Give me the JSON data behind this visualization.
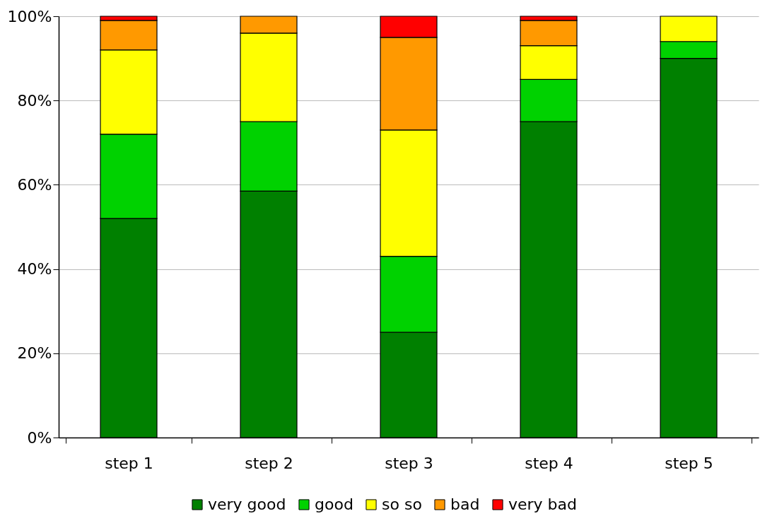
{
  "chart_data": {
    "type": "bar",
    "stacked": true,
    "categories": [
      "step 1",
      "step 2",
      "step 3",
      "step 4",
      "step 5"
    ],
    "series": [
      {
        "name": "very good",
        "color": "#008000",
        "values": [
          52,
          58.5,
          25,
          75,
          90
        ]
      },
      {
        "name": "good",
        "color": "#00d200",
        "values": [
          20,
          16.5,
          18,
          10,
          4
        ]
      },
      {
        "name": "so so",
        "color": "#ffff00",
        "values": [
          20,
          21,
          30,
          8,
          6
        ]
      },
      {
        "name": "bad",
        "color": "#ff9900",
        "values": [
          7,
          4,
          22,
          6,
          null
        ]
      },
      {
        "name": "very bad",
        "color": "#ff0000",
        "values": [
          1,
          null,
          5,
          1,
          null
        ]
      }
    ],
    "ylim": [
      0,
      100
    ],
    "yticks": [
      {
        "value": 0,
        "label": "0%"
      },
      {
        "value": 20,
        "label": "20%"
      },
      {
        "value": 40,
        "label": "40%"
      },
      {
        "value": 60,
        "label": "60%"
      },
      {
        "value": 80,
        "label": "80%"
      },
      {
        "value": 100,
        "label": "100%"
      }
    ],
    "grid": "y",
    "legend": "bottom"
  }
}
